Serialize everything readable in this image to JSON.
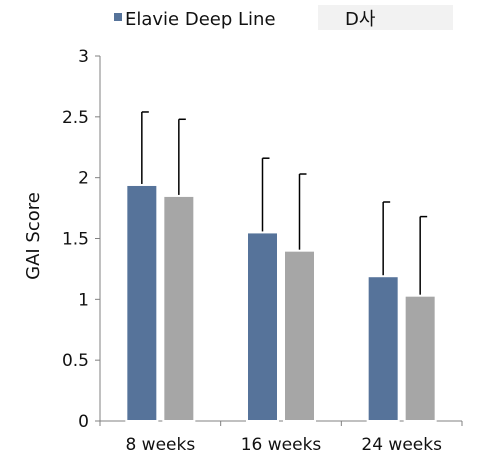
{
  "chart_data": {
    "type": "bar",
    "categories": [
      "8 weeks",
      "16 weeks",
      "24 weeks"
    ],
    "series": [
      {
        "name": "Elavie Deep Line",
        "values": [
          1.94,
          1.55,
          1.19
        ],
        "errors": [
          0.6,
          0.61,
          0.61
        ],
        "color": "#56739a"
      },
      {
        "name": "D사",
        "values": [
          1.85,
          1.4,
          1.03
        ],
        "errors": [
          0.63,
          0.63,
          0.65
        ],
        "color": "#a6a6a6"
      }
    ],
    "ylabel": "GAI Score",
    "ylim": [
      0,
      3
    ],
    "yticks": [
      "0",
      "0.5",
      "1",
      "1.5",
      "2",
      "2.5",
      "3"
    ],
    "grid": false,
    "legend_position": "top"
  }
}
